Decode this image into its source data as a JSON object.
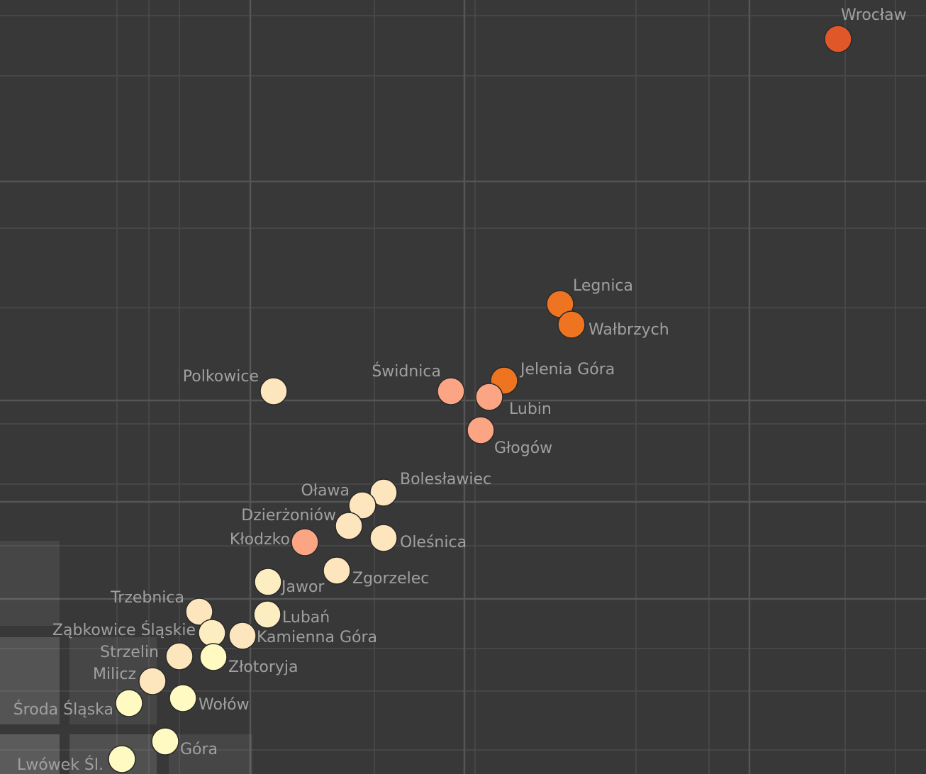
{
  "chart_data": {
    "type": "scatter",
    "xlim": [
      0,
      130.6
    ],
    "ylim": [
      0,
      109.2
    ],
    "points": [
      {
        "label": "Wrocław",
        "x": 118.2,
        "y": 103.7,
        "color": "#e0572a"
      },
      {
        "label": "Legnica",
        "x": 79.0,
        "y": 66.3,
        "color": "#ee7422"
      },
      {
        "label": "Wałbrzych",
        "x": 80.6,
        "y": 63.4,
        "color": "#ee7422"
      },
      {
        "label": "Jelenia Góra",
        "x": 71.1,
        "y": 55.5,
        "color": "#ee7422"
      },
      {
        "label": "Świdnica",
        "x": 63.6,
        "y": 54.0,
        "color": "#fca585"
      },
      {
        "label": "Lubin",
        "x": 69.0,
        "y": 53.2,
        "color": "#fca585"
      },
      {
        "label": "Polkowice",
        "x": 38.6,
        "y": 54.0,
        "color": "#fde6bd"
      },
      {
        "label": "Głogów",
        "x": 67.8,
        "y": 48.5,
        "color": "#fca585"
      },
      {
        "label": "Bolesławiec",
        "x": 54.1,
        "y": 39.7,
        "color": "#fde6bd"
      },
      {
        "label": "Oława",
        "x": 51.1,
        "y": 37.9,
        "color": "#fde6bd"
      },
      {
        "label": "Dzierżoniów",
        "x": 49.2,
        "y": 35.0,
        "color": "#fde6bd"
      },
      {
        "label": "Oleśnica",
        "x": 54.1,
        "y": 33.3,
        "color": "#fde6bd"
      },
      {
        "label": "Kłodzko",
        "x": 43.0,
        "y": 32.7,
        "color": "#fca585"
      },
      {
        "label": "Zgorzelec",
        "x": 47.5,
        "y": 28.7,
        "color": "#fde6bd"
      },
      {
        "label": "Jawor",
        "x": 37.8,
        "y": 27.1,
        "color": "#fdeec2"
      },
      {
        "label": "Trzebnica",
        "x": 28.1,
        "y": 22.9,
        "color": "#fde6bd"
      },
      {
        "label": "Lubań",
        "x": 37.7,
        "y": 22.5,
        "color": "#fdeec2"
      },
      {
        "label": "Ząbkowice Śląskie",
        "x": 29.9,
        "y": 19.9,
        "color": "#fdeec2"
      },
      {
        "label": "Kamienna Góra",
        "x": 34.2,
        "y": 19.5,
        "color": "#fde6bd"
      },
      {
        "label": "Strzelin",
        "x": 25.3,
        "y": 16.6,
        "color": "#fde6bd"
      },
      {
        "label": "Złotoryja",
        "x": 30.1,
        "y": 16.5,
        "color": "#fefac2"
      },
      {
        "label": "Milicz",
        "x": 21.5,
        "y": 13.1,
        "color": "#fde6bd"
      },
      {
        "label": "Wołów",
        "x": 25.8,
        "y": 10.7,
        "color": "#fefac2"
      },
      {
        "label": "Środa Śląska",
        "x": 18.2,
        "y": 10.0,
        "color": "#fefac2"
      },
      {
        "label": "Góra",
        "x": 23.3,
        "y": 4.6,
        "color": "#fefac2"
      },
      {
        "label": "Lwówek Śl.",
        "x": 17.2,
        "y": 2.1,
        "color": "#fefac2"
      }
    ]
  }
}
